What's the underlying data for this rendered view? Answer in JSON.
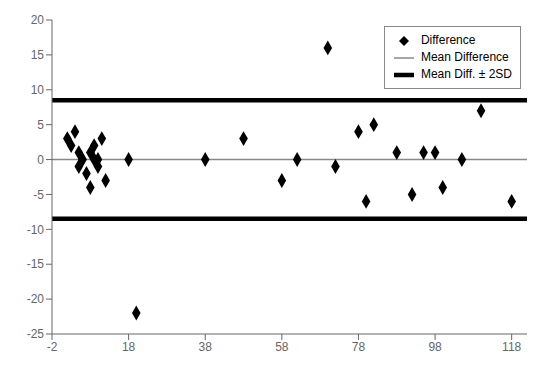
{
  "chart_data": {
    "type": "scatter",
    "x": [
      2,
      3,
      4,
      5,
      5,
      6,
      7,
      8,
      8,
      9,
      9,
      10,
      10,
      11,
      12,
      18,
      20,
      38,
      48,
      58,
      62,
      70,
      72,
      78,
      80,
      82,
      88,
      92,
      95,
      98,
      100,
      105,
      110,
      118
    ],
    "series": [
      {
        "name": "Difference",
        "type": "scatter",
        "marker": "diamond",
        "color": "#000000",
        "values": [
          3,
          2,
          4,
          1,
          -1,
          0,
          -2,
          1,
          -4,
          2,
          0,
          -1,
          0,
          3,
          -3,
          0,
          -22,
          0,
          3,
          -3,
          0,
          16,
          -1,
          4,
          -6,
          5,
          1,
          -5,
          1,
          1,
          -4,
          0,
          7,
          -6
        ]
      }
    ],
    "lines": [
      {
        "name": "Mean Difference",
        "color": "#888888",
        "values": [
          0
        ]
      },
      {
        "name": "Mean Diff. ± 2SD",
        "color": "#000000",
        "values": [
          8.5,
          -8.5
        ]
      }
    ],
    "xlim": [
      -2,
      122
    ],
    "ylim": [
      -25,
      20
    ],
    "xticks": [
      -2,
      18,
      38,
      58,
      78,
      98,
      118
    ],
    "yticks": [
      -25,
      -20,
      -15,
      -10,
      -5,
      0,
      5,
      10,
      15,
      20
    ],
    "grid": false,
    "legend": "upper right"
  }
}
